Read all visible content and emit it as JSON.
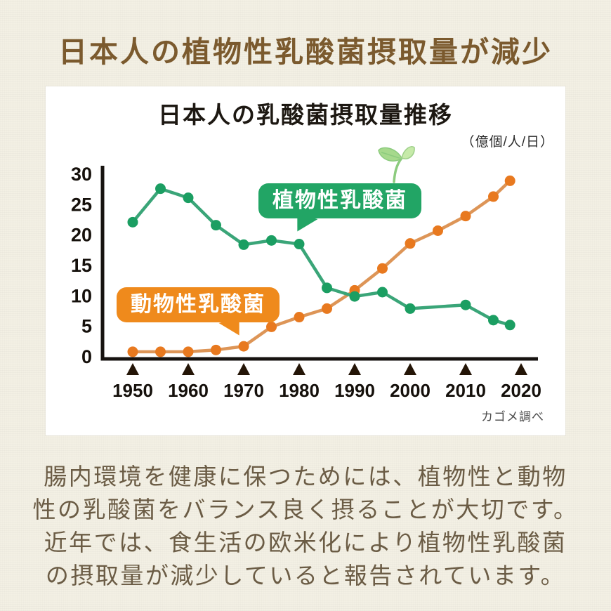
{
  "page": {
    "title": "日本人の植物性乳酸菌摂取量が減少",
    "title_color": "#7b5a2e",
    "background_color": "#f3f0e4"
  },
  "chart": {
    "title": "日本人の乳酸菌摂取量推移",
    "unit_label": "（億個/人/日）",
    "source": "カゴメ調べ",
    "series_labels": {
      "plant": "植物性乳酸菌",
      "animal": "動物性乳酸菌"
    },
    "colors": {
      "plant_line": "#3aa578",
      "plant_dot": "#1b9e62",
      "animal_line": "#dd9557",
      "animal_dot": "#e8791f",
      "axis": "#171310",
      "tick_triangle": "#241507",
      "tick_text": "#15100b",
      "bubble_plant_bg": "#22a565",
      "bubble_animal_bg": "#ef8a1c"
    }
  },
  "chart_data": {
    "type": "line",
    "title": "日本人の乳酸菌摂取量推移",
    "unit": "億個/人/日",
    "x": [
      1950,
      1955,
      1960,
      1965,
      1970,
      1975,
      1980,
      1985,
      1990,
      1995,
      2000,
      2005,
      2010,
      2015,
      2018
    ],
    "series": [
      {
        "name": "植物性乳酸菌",
        "color": "#1b9e62",
        "values": [
          22,
          27.5,
          26,
          21.5,
          18.3,
          19,
          18.4,
          11.2,
          9.8,
          10.5,
          7.8,
          null,
          8.4,
          5.9,
          5.1
        ]
      },
      {
        "name": "動物性乳酸菌",
        "color": "#e8791f",
        "values": [
          0.7,
          0.7,
          0.7,
          1,
          1.6,
          4.8,
          6.4,
          7.8,
          10.8,
          14.4,
          18.5,
          20.6,
          23,
          26.2,
          28.8
        ]
      }
    ],
    "x_ticks": [
      1950,
      1960,
      1970,
      1980,
      1990,
      2000,
      2010,
      2020
    ],
    "y_ticks": [
      0,
      5,
      10,
      15,
      20,
      25,
      30
    ],
    "xlim": [
      1950,
      2021
    ],
    "ylim": [
      0,
      30
    ],
    "grid": false,
    "legend_position": "speech-bubble annotations on plot",
    "source": "カゴメ調べ"
  },
  "icons": {
    "sprout": "seedling"
  },
  "body_text": {
    "lines": [
      "腸内環境を健康に保つためには、植物性と動物",
      "性の乳酸菌をバランス良く摂ることが大切です。",
      "近年では、食生活の欧米化により植物性乳酸菌",
      "の摂取量が減少していると報告されています。"
    ]
  }
}
